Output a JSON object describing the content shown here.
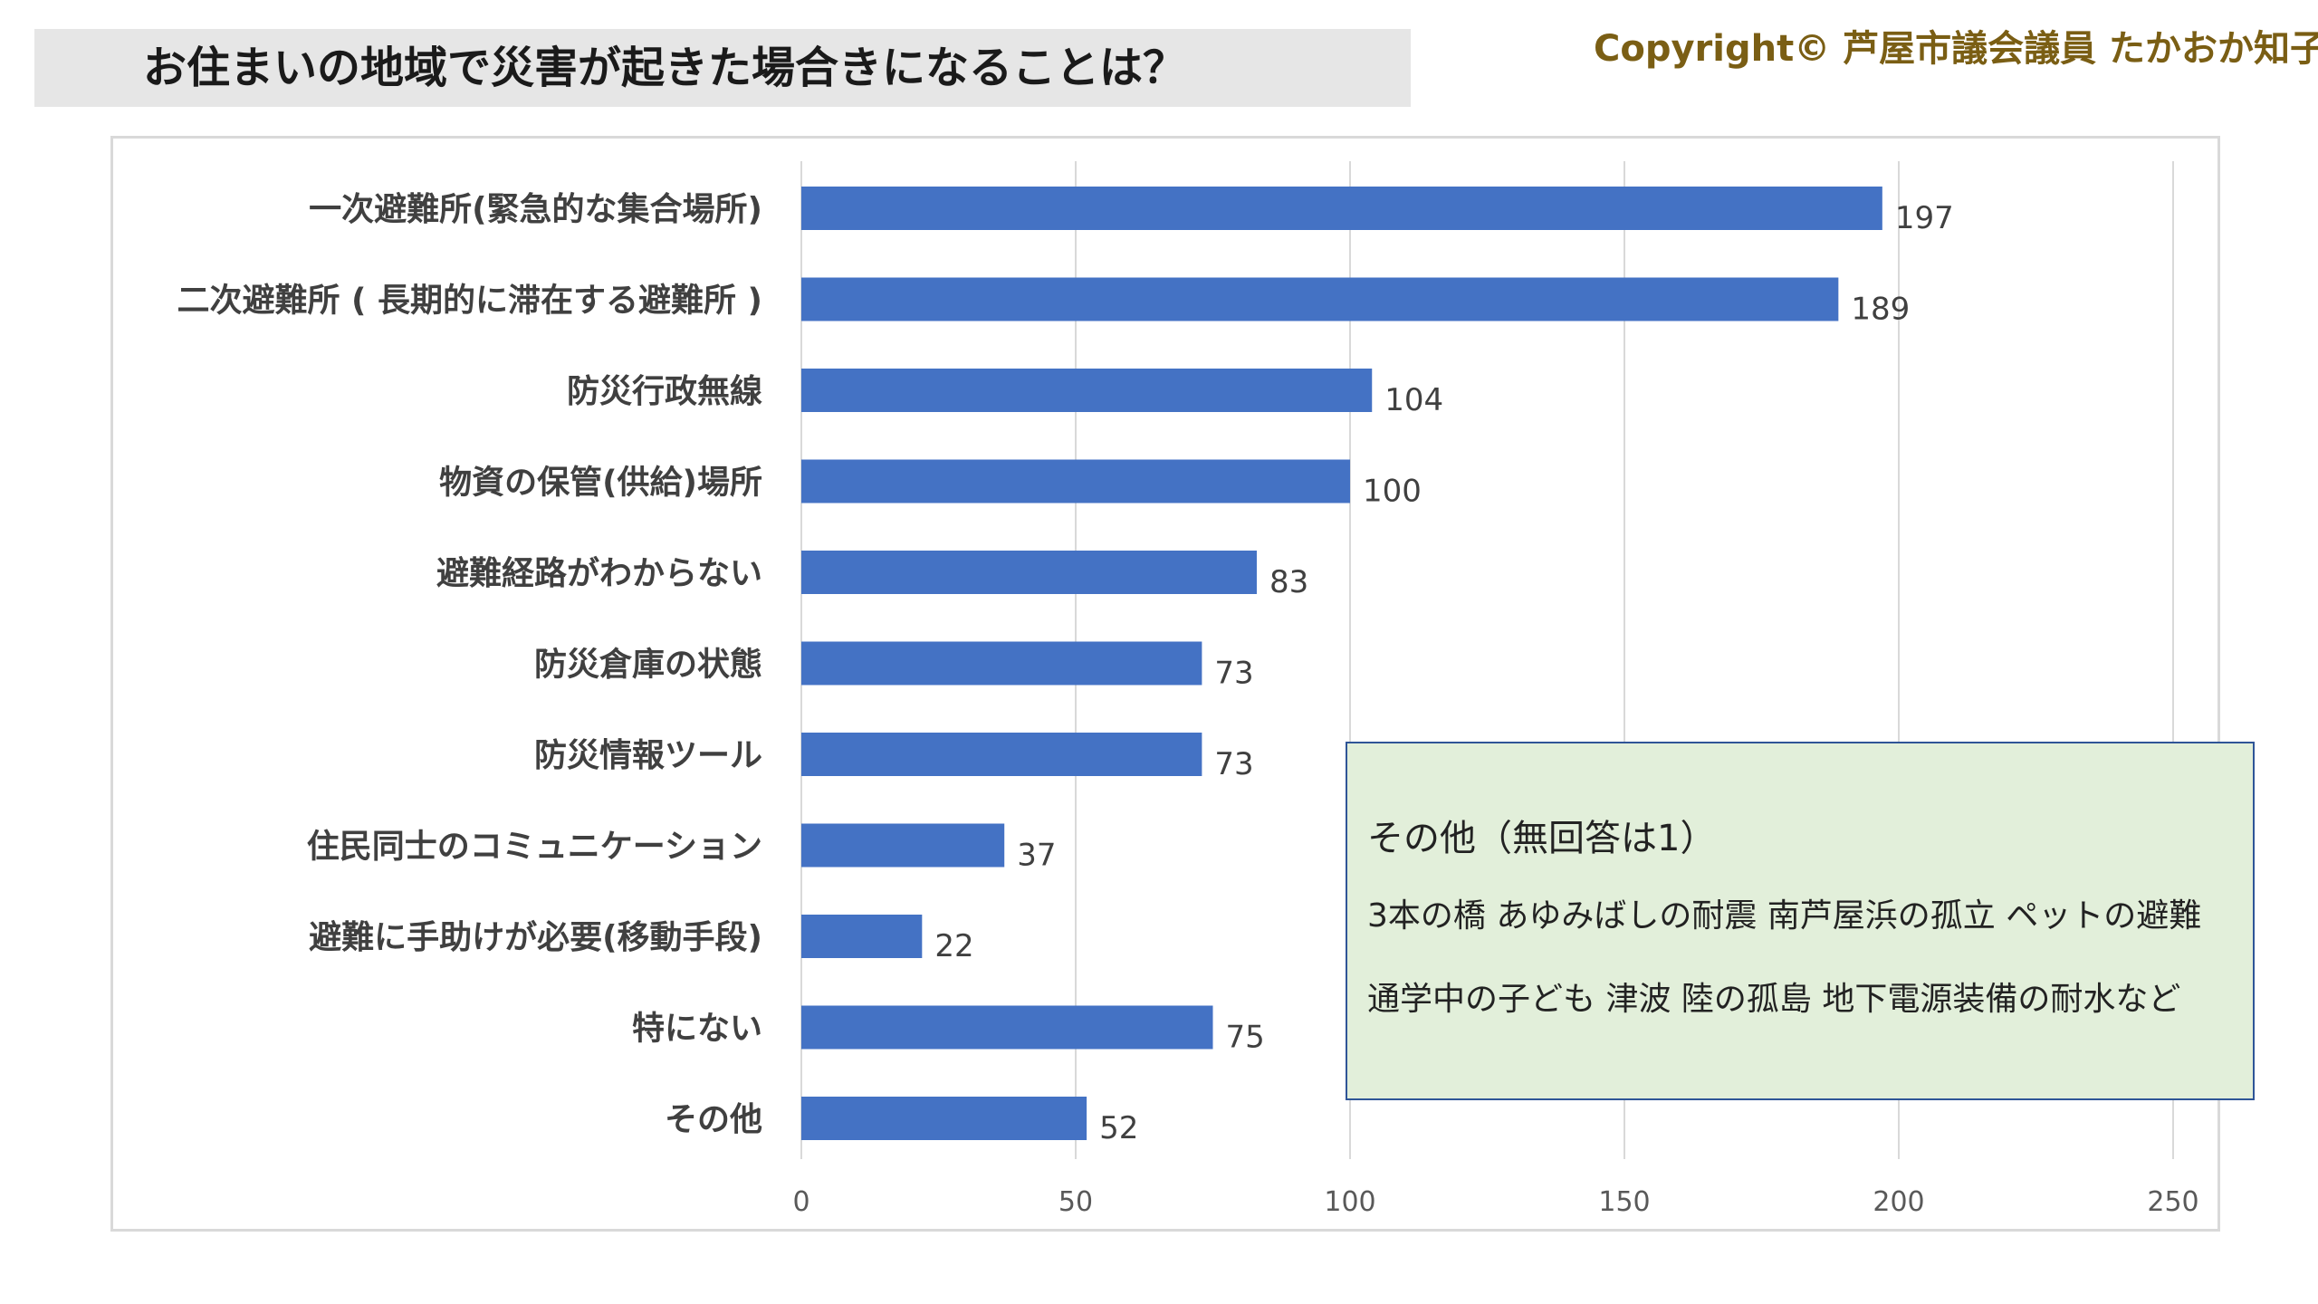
{
  "header": {
    "title": "お住まいの地域で災害が起きた場合きになることは？",
    "copyright": "Copyright© 芦屋市議会議員 たかおか知子"
  },
  "colors": {
    "bar": "#4472c4",
    "grid": "#d9d9d9",
    "note_bg": "#e2efda",
    "note_border": "#2f5597",
    "copyright": "#7a5e14"
  },
  "chart_data": {
    "type": "bar",
    "orientation": "horizontal",
    "categories": [
      "一次避難所(緊急的な集合場所)",
      "二次避難所 ( 長期的に滞在する避難所 )",
      "防災行政無線",
      "物資の保管(供給)場所",
      "避難経路がわからない",
      "防災倉庫の状態",
      "防災情報ツール",
      "住民同士のコミュニケーション",
      "避難に手助けが必要(移動手段)",
      "特にない",
      "その他"
    ],
    "values": [
      197,
      189,
      104,
      100,
      83,
      73,
      73,
      37,
      22,
      75,
      52
    ],
    "xlim": [
      0,
      250
    ],
    "xticks": [
      0,
      50,
      100,
      150,
      200,
      250
    ],
    "grid": true,
    "data_labels": true
  },
  "note": {
    "heading": "その他（無回答は1）",
    "lines": [
      "3本の橋 あゆみばしの耐震 南芦屋浜の孤立 ペットの避難",
      "通学中の子ども 津波 陸の孤島 地下電源装備の耐水など"
    ]
  }
}
